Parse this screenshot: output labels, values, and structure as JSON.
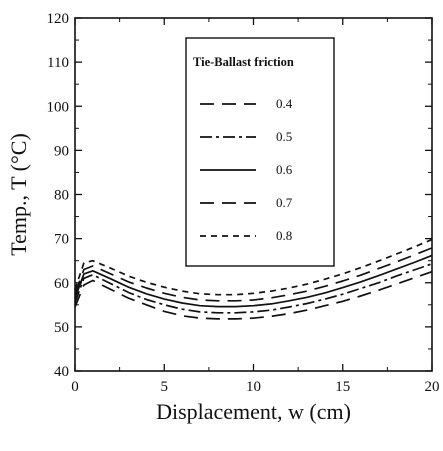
{
  "chart_data": {
    "type": "line",
    "xlabel": "Displacement, w (cm)",
    "ylabel": "Temp., T (°C)",
    "xlim": [
      0,
      20
    ],
    "ylim": [
      40,
      120
    ],
    "xticks": [
      0,
      5,
      10,
      15,
      20
    ],
    "yticks": [
      40,
      50,
      60,
      70,
      80,
      90,
      100,
      110,
      120
    ],
    "grid": false,
    "legend": {
      "title": "Tie-Ballast friction",
      "placement": "top-center"
    },
    "x": [
      0,
      0.5,
      1,
      2,
      3,
      4,
      5,
      6,
      7,
      8,
      9,
      10,
      11,
      12,
      13,
      14,
      15,
      16,
      17,
      18,
      19,
      20
    ],
    "series": [
      {
        "name": "0.4",
        "dash": "long-dash",
        "values": [
          54.5,
          59.5,
          60.5,
          58.5,
          56.5,
          55,
          53.5,
          52.5,
          52,
          51.8,
          51.8,
          52,
          52.4,
          53,
          53.8,
          54.8,
          55.8,
          57,
          58.3,
          59.7,
          61.1,
          62.5
        ]
      },
      {
        "name": "0.5",
        "dash": "dash-dot",
        "values": [
          55.5,
          61,
          61.8,
          59.8,
          57.8,
          56.2,
          55,
          54,
          53.4,
          53.2,
          53.2,
          53.4,
          53.8,
          54.5,
          55.3,
          56.3,
          57.4,
          58.7,
          60,
          61.5,
          62.9,
          64.3
        ]
      },
      {
        "name": "0.6",
        "dash": "solid",
        "values": [
          56.5,
          62,
          62.7,
          60.9,
          59,
          57.5,
          56.3,
          55.4,
          54.8,
          54.6,
          54.6,
          54.8,
          55.2,
          55.9,
          56.7,
          57.7,
          58.9,
          60.2,
          61.6,
          63.1,
          64.6,
          66.2
        ]
      },
      {
        "name": "0.7",
        "dash": "long-dash",
        "values": [
          57.5,
          63,
          63.8,
          62,
          60.2,
          58.8,
          57.6,
          56.7,
          56.1,
          55.9,
          55.9,
          56.1,
          56.6,
          57.3,
          58.1,
          59.2,
          60.4,
          61.7,
          63.2,
          64.7,
          66.3,
          67.9
        ]
      },
      {
        "name": "0.8",
        "dash": "short-dash",
        "values": [
          58.5,
          64.5,
          65,
          63.3,
          61.5,
          60.1,
          59,
          58.1,
          57.5,
          57.3,
          57.3,
          57.6,
          58.1,
          58.8,
          59.7,
          60.8,
          62,
          63.4,
          64.9,
          66.5,
          68.1,
          69.8
        ]
      }
    ]
  }
}
